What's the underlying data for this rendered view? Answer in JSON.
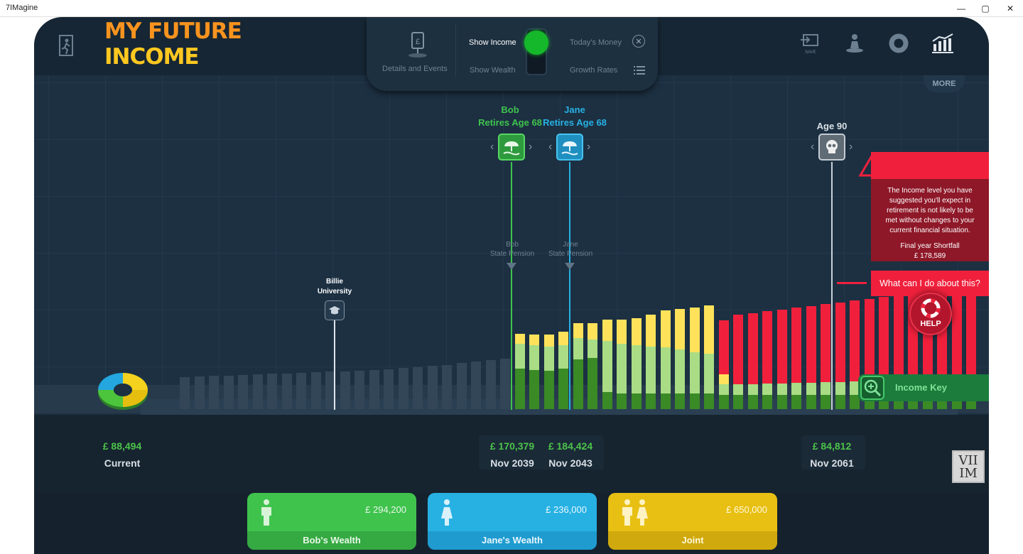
{
  "window": {
    "title": "7IMagine",
    "minimize": "—",
    "maximize": "▢",
    "close": "✕"
  },
  "header": {
    "title_line1": "MY FUTURE",
    "title_line2": "INCOME"
  },
  "controls": {
    "details_label": "Details and Events",
    "show_income": "Show Income",
    "show_wealth": "Show Wealth",
    "todays_money": "Today's Money",
    "growth_rates": "Growth Rates",
    "toggle_state": "Show Income"
  },
  "nav": {
    "save_label": "SAVE",
    "more_label": "MORE"
  },
  "markers": {
    "bob_name": "Bob",
    "bob_retire": "Retires Age 68",
    "jane_name": "Jane",
    "jane_retire": "Retires Age 68",
    "age90": "Age 90",
    "billie_line1": "Billie",
    "billie_line2": "University",
    "bob_pension_line1": "Bob",
    "bob_pension_line2": "State Pension",
    "jane_pension_line1": "Jane",
    "jane_pension_line2": "State Pension"
  },
  "values": {
    "current_amount": "£ 88,494",
    "current_label": "Current",
    "bob_amount": "£ 170,379",
    "bob_date": "Nov 2039",
    "jane_amount": "£ 184,424",
    "jane_date": "Nov 2043",
    "end_amount": "£ 84,812",
    "end_date": "Nov 2061"
  },
  "alert": {
    "message": "The Income level you have suggested you'll expect in retirement is not likely to be met without changes to your current financial situation.",
    "shortfall_label": "Final year Shortfall",
    "shortfall_value": "£ 178,589",
    "action": "What can I do about this?"
  },
  "help": {
    "label": "HELP"
  },
  "income_key": {
    "label": "Income Key"
  },
  "logo": {
    "line1": "VII",
    "line2": "IM"
  },
  "wealth_cards": [
    {
      "label": "Bob's Wealth",
      "amount": "£ 294,200"
    },
    {
      "label": "Jane's Wealth",
      "amount": "£ 236,000"
    },
    {
      "label": "Joint",
      "amount": "£ 650,000"
    }
  ],
  "colors": {
    "title_orange": "#f7931e",
    "title_yellow": "#ffc820",
    "bob_green": "#3fc34d",
    "jane_blue": "#27b1e3",
    "shortfall_red": "#f0203c",
    "joint_yellow": "#e8c013"
  },
  "chart_data": {
    "type": "bar",
    "ghost_bars_years": 23,
    "ghost_relative_heights": [
      0.6,
      0.61,
      0.62,
      0.63,
      0.64,
      0.65,
      0.66,
      0.67,
      0.68,
      0.69,
      0.7,
      0.71,
      0.72,
      0.73,
      0.75,
      0.77,
      0.79,
      0.81,
      0.83,
      0.86,
      0.89,
      0.92,
      0.95
    ],
    "series": [
      {
        "name": "dark_green",
        "values": [
          57,
          55,
          54,
          57,
          70,
          72,
          24,
          22,
          22,
          22,
          22,
          22,
          22,
          22,
          20,
          20,
          20,
          20,
          20,
          20,
          20,
          20,
          20,
          20,
          20,
          20,
          20,
          20,
          20,
          20,
          20,
          20
        ]
      },
      {
        "name": "light_green",
        "values": [
          35,
          35,
          34,
          33,
          30,
          26,
          72,
          70,
          68,
          66,
          65,
          62,
          58,
          56,
          15,
          15,
          15,
          16,
          16,
          17,
          17,
          18,
          18,
          19,
          19,
          20,
          20,
          21,
          21,
          22,
          22,
          22
        ]
      },
      {
        "name": "yellow",
        "values": [
          14,
          15,
          17,
          19,
          21,
          23,
          30,
          34,
          38,
          45,
          52,
          57,
          63,
          68,
          14,
          0,
          0,
          0,
          0,
          0,
          0,
          0,
          0,
          0,
          0,
          0,
          0,
          0,
          0,
          0,
          0,
          0
        ]
      },
      {
        "name": "red",
        "values": [
          0,
          0,
          0,
          0,
          0,
          0,
          0,
          0,
          0,
          0,
          0,
          0,
          0,
          0,
          76,
          98,
          100,
          102,
          104,
          106,
          108,
          110,
          112,
          114,
          116,
          118,
          120,
          122,
          124,
          126,
          128,
          130
        ]
      }
    ]
  }
}
